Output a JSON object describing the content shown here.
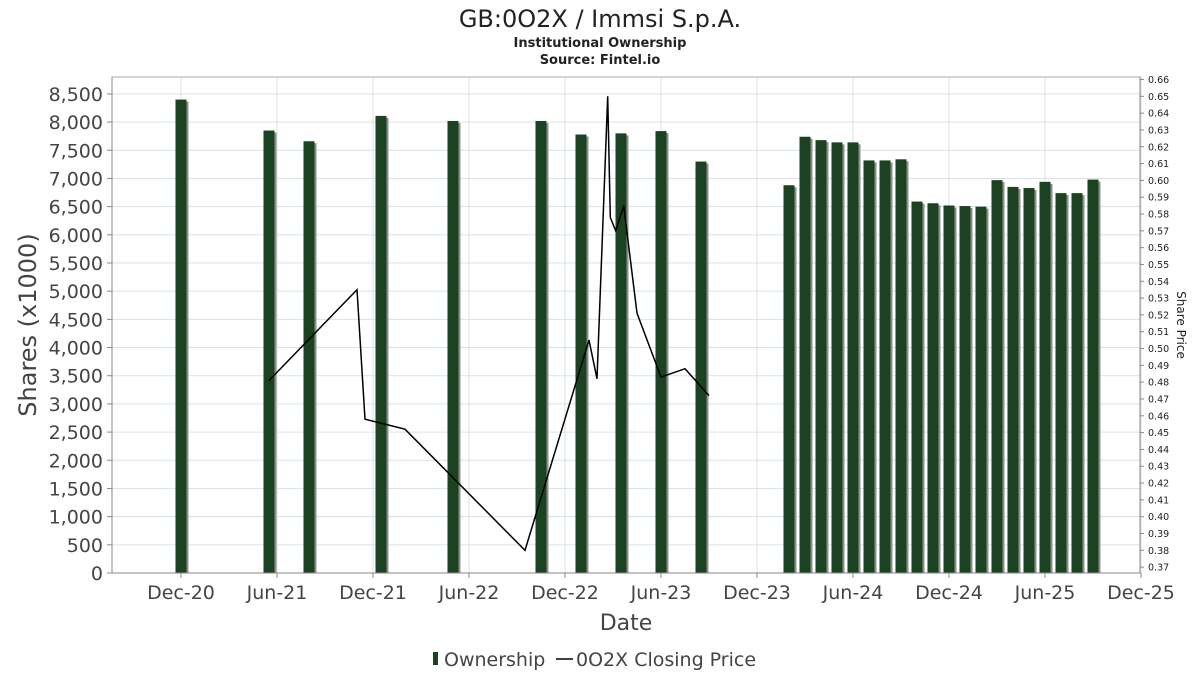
{
  "chart_data": {
    "type": "bar",
    "title": "GB:0O2X / Immsi S.p.A.",
    "subtitle": "Institutional Ownership",
    "source": "Source: Fintel.io",
    "xlabel": "Date",
    "ylabel": "Shares (x1000)",
    "y2label": "Share Price",
    "x_ticks": [
      "Dec-20",
      "Jun-21",
      "Dec-21",
      "Jun-22",
      "Dec-22",
      "Jun-23",
      "Dec-23",
      "Jun-24",
      "Dec-24",
      "Jun-25",
      "Dec-25"
    ],
    "y_ticks": [
      "0",
      "500",
      "1,000",
      "1,500",
      "2,000",
      "2,500",
      "3,000",
      "3,500",
      "4,000",
      "4,500",
      "5,000",
      "5,500",
      "6,000",
      "6,500",
      "7,000",
      "7,500",
      "8,000",
      "8,500"
    ],
    "y2_ticks": [
      "0.37",
      "0.38",
      "0.39",
      "0.40",
      "0.41",
      "0.42",
      "0.43",
      "0.44",
      "0.45",
      "0.46",
      "0.47",
      "0.48",
      "0.49",
      "0.50",
      "0.51",
      "0.52",
      "0.53",
      "0.54",
      "0.55",
      "0.56",
      "0.57",
      "0.58",
      "0.59",
      "0.60",
      "0.61",
      "0.62",
      "0.63",
      "0.64",
      "0.65",
      "0.66"
    ],
    "ylim": [
      0,
      8800
    ],
    "y2lim": [
      0.3665,
      0.6615
    ],
    "grid": true,
    "legend_position": "bottom",
    "colors": {
      "bar": "#1b4321",
      "bar_shadow": "#8e8e8e",
      "line": "#000000",
      "grid": "#d9e2e8"
    },
    "series": [
      {
        "name": "Ownership",
        "kind": "bar",
        "axis": "left",
        "x": [
          "2020-12-01",
          "2021-05-16",
          "2021-07-31",
          "2021-12-16",
          "2022-05-01",
          "2022-10-16",
          "2023-01-01",
          "2023-03-16",
          "2023-06-01",
          "2023-08-16",
          "2024-02-01",
          "2024-03-01",
          "2024-04-01",
          "2024-05-01",
          "2024-06-01",
          "2024-07-01",
          "2024-08-01",
          "2024-09-01",
          "2024-10-01",
          "2024-11-01",
          "2024-12-01",
          "2025-01-01",
          "2025-02-01",
          "2025-03-01",
          "2025-04-01",
          "2025-05-01",
          "2025-06-01",
          "2025-07-01",
          "2025-08-01",
          "2025-09-01"
        ],
        "values": [
          8400,
          7850,
          7660,
          8110,
          8020,
          8020,
          7780,
          7800,
          7840,
          7300,
          6880,
          7740,
          7680,
          7640,
          7640,
          7320,
          7320,
          7340,
          6590,
          6560,
          6520,
          6510,
          6500,
          6970,
          6850,
          6830,
          6940,
          6740,
          6740,
          6980
        ]
      },
      {
        "name": "0O2X Closing Price",
        "kind": "line",
        "axis": "right",
        "x": [
          "2021-05-16",
          "2021-10-31",
          "2021-11-16",
          "2022-02-01",
          "2022-09-16",
          "2023-01-16",
          "2023-02-01",
          "2023-02-21",
          "2023-02-26",
          "2023-03-06",
          "2023-03-21",
          "2023-04-16",
          "2023-06-01",
          "2023-07-16",
          "2023-09-01"
        ],
        "values": [
          0.481,
          0.535,
          0.458,
          0.452,
          0.38,
          0.505,
          0.482,
          0.65,
          0.578,
          0.57,
          0.585,
          0.521,
          0.483,
          0.488,
          0.472
        ]
      }
    ]
  }
}
